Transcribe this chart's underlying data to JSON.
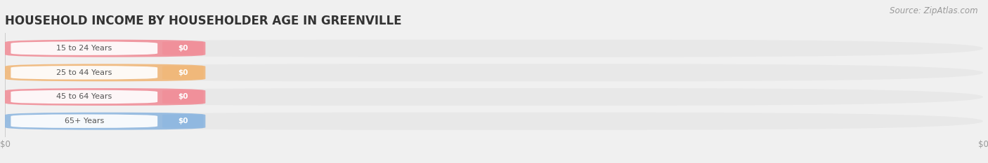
{
  "title": "HOUSEHOLD INCOME BY HOUSEHOLDER AGE IN GREENVILLE",
  "source_text": "Source: ZipAtlas.com",
  "categories": [
    "15 to 24 Years",
    "25 to 44 Years",
    "45 to 64 Years",
    "65+ Years"
  ],
  "values": [
    0,
    0,
    0,
    0
  ],
  "bar_colors": [
    "#f0909a",
    "#f0b87a",
    "#f0909a",
    "#90b8e0"
  ],
  "bar_bg_color": "#e8e8e8",
  "background_color": "#f0f0f0",
  "value_labels": [
    "$0",
    "$0",
    "$0",
    "$0"
  ],
  "xtick_labels": [
    "$0",
    "$0"
  ],
  "xtick_positions": [
    0.0,
    1.0
  ],
  "title_fontsize": 12,
  "source_fontsize": 8.5,
  "bar_height": 0.72
}
